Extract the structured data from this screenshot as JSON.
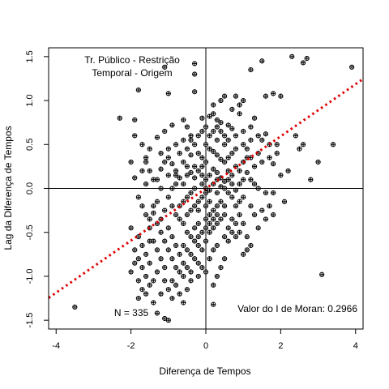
{
  "chart_data": {
    "type": "scatter",
    "xlabel": "Diferença de Tempos",
    "ylabel": "Lag da Diferença de Tempos",
    "xlim": [
      -4.2,
      4.2
    ],
    "ylim": [
      -1.6,
      1.6
    ],
    "x_ticks": [
      -4,
      -2,
      0,
      2,
      4
    ],
    "x_tick_labels": [
      "-4",
      "-2",
      "0",
      "2",
      "4"
    ],
    "y_ticks": [
      -1.5,
      -1.0,
      -0.5,
      0.0,
      0.5,
      1.0,
      1.5
    ],
    "y_tick_labels": [
      "-1.5",
      "-1.0",
      "-0.5",
      "0.0",
      "0.5",
      "1.0",
      "1.5"
    ],
    "grid": false,
    "annotations": {
      "title_line1": "Tr. Público - Restrição",
      "title_line2": "Temporal - Origem",
      "n_label": "N = 335",
      "moran_label": "Valor do I de Moran: 0.2966"
    },
    "regression_line": {
      "slope": 0.2966,
      "intercept": 0.0,
      "color": "#e00000",
      "style": "dotted"
    },
    "reference_lines": {
      "x": 0,
      "y": 0
    },
    "point_color": "#000000",
    "points": [
      [
        -3.5,
        -1.35
      ],
      [
        -1.8,
        1.12
      ],
      [
        -1.9,
        0.78
      ],
      [
        -1.1,
        1.38
      ],
      [
        -0.3,
        1.42
      ],
      [
        -0.3,
        1.3
      ],
      [
        1.2,
        1.35
      ],
      [
        1.5,
        1.45
      ],
      [
        2.3,
        1.5
      ],
      [
        2.7,
        1.48
      ],
      [
        2.6,
        1.43
      ],
      [
        3.9,
        1.38
      ],
      [
        -1.0,
        1.08
      ],
      [
        -0.3,
        1.1
      ],
      [
        0.5,
        1.05
      ],
      [
        0.8,
        1.05
      ],
      [
        1.0,
        1.0
      ],
      [
        1.6,
        1.05
      ],
      [
        1.8,
        1.08
      ],
      [
        2.0,
        1.05
      ],
      [
        0.9,
        0.95
      ],
      [
        0.7,
        0.9
      ],
      [
        0.2,
        0.85
      ],
      [
        0.1,
        0.82
      ],
      [
        -0.1,
        0.8
      ],
      [
        0.3,
        0.78
      ],
      [
        0.4,
        0.75
      ],
      [
        -0.6,
        0.78
      ],
      [
        -0.5,
        0.7
      ],
      [
        -0.4,
        0.6
      ],
      [
        0.6,
        0.72
      ],
      [
        0.7,
        0.68
      ],
      [
        1.4,
        0.6
      ],
      [
        1.5,
        0.55
      ],
      [
        1.6,
        0.62
      ],
      [
        1.2,
        0.55
      ],
      [
        2.4,
        0.6
      ],
      [
        2.6,
        0.5
      ],
      [
        1.7,
        0.5
      ],
      [
        1.9,
        0.4
      ],
      [
        1.8,
        0.28
      ],
      [
        2.0,
        0.15
      ],
      [
        3.0,
        0.3
      ],
      [
        2.5,
        0.45
      ],
      [
        1.1,
        0.45
      ],
      [
        -1.6,
        0.35
      ],
      [
        -1.6,
        0.3
      ],
      [
        -1.5,
        0.2
      ],
      [
        -1.4,
        0.1
      ],
      [
        -1.7,
        0.2
      ],
      [
        -1.6,
        0.05
      ],
      [
        -1.2,
        0.4
      ],
      [
        -1.1,
        0.3
      ],
      [
        -1.2,
        0.22
      ],
      [
        -1.0,
        0.15
      ],
      [
        -1.3,
        0.1
      ],
      [
        -0.8,
        0.2
      ],
      [
        -0.6,
        0.3
      ],
      [
        -0.5,
        0.45
      ],
      [
        -0.4,
        0.55
      ],
      [
        -0.3,
        0.5
      ],
      [
        -0.2,
        0.4
      ],
      [
        -0.1,
        0.35
      ],
      [
        0.0,
        0.5
      ],
      [
        0.1,
        0.45
      ],
      [
        0.2,
        0.42
      ],
      [
        0.3,
        0.38
      ],
      [
        0.4,
        0.33
      ],
      [
        0.5,
        0.3
      ],
      [
        0.6,
        0.35
      ],
      [
        0.7,
        0.4
      ],
      [
        0.8,
        0.25
      ],
      [
        0.9,
        0.2
      ],
      [
        1.0,
        0.3
      ],
      [
        1.1,
        0.18
      ],
      [
        1.2,
        0.1
      ],
      [
        1.3,
        0.05
      ],
      [
        1.4,
        0.0
      ],
      [
        1.6,
        -0.05
      ],
      [
        1.8,
        -0.05
      ],
      [
        -2.0,
        0.3
      ],
      [
        -1.9,
        0.12
      ],
      [
        -1.8,
        -0.1
      ],
      [
        -1.7,
        -0.2
      ],
      [
        -1.6,
        -0.3
      ],
      [
        -1.5,
        -0.35
      ],
      [
        -1.4,
        -0.28
      ],
      [
        -1.3,
        -0.4
      ],
      [
        -1.2,
        -0.5
      ],
      [
        -1.1,
        -0.6
      ],
      [
        -1.0,
        -0.7
      ],
      [
        -0.9,
        -0.8
      ],
      [
        -0.8,
        -0.9
      ],
      [
        -0.7,
        -0.95
      ],
      [
        -0.6,
        -1.0
      ],
      [
        -0.5,
        -0.3
      ],
      [
        -0.4,
        -0.25
      ],
      [
        -0.3,
        -0.2
      ],
      [
        -0.2,
        -0.15
      ],
      [
        -0.1,
        -0.1
      ],
      [
        0.0,
        -0.05
      ],
      [
        0.1,
        -0.02
      ],
      [
        0.2,
        0.05
      ],
      [
        0.3,
        0.1
      ],
      [
        0.4,
        0.12
      ],
      [
        0.5,
        0.08
      ],
      [
        0.6,
        -0.05
      ],
      [
        0.7,
        -0.1
      ],
      [
        0.8,
        -0.2
      ],
      [
        0.9,
        -0.3
      ],
      [
        1.0,
        -0.4
      ],
      [
        -1.0,
        -0.1
      ],
      [
        -0.9,
        -0.2
      ],
      [
        -0.8,
        -0.3
      ],
      [
        -0.7,
        -0.35
      ],
      [
        -0.6,
        -0.4
      ],
      [
        -0.5,
        -0.5
      ],
      [
        -0.4,
        -0.55
      ],
      [
        -0.3,
        -0.6
      ],
      [
        -0.2,
        -0.65
      ],
      [
        -0.1,
        -0.7
      ],
      [
        0.0,
        -0.6
      ],
      [
        0.1,
        -0.5
      ],
      [
        0.2,
        -0.45
      ],
      [
        0.3,
        -0.4
      ],
      [
        0.4,
        -0.35
      ],
      [
        0.5,
        -0.55
      ],
      [
        -1.9,
        -0.7
      ],
      [
        -1.8,
        -0.8
      ],
      [
        -1.7,
        -0.9
      ],
      [
        -1.6,
        -1.0
      ],
      [
        -1.7,
        -1.15
      ],
      [
        -1.6,
        -1.2
      ],
      [
        -1.5,
        -1.1
      ],
      [
        -1.4,
        -1.05
      ],
      [
        -1.5,
        -0.6
      ],
      [
        -1.3,
        -0.7
      ],
      [
        -1.2,
        -0.8
      ],
      [
        -1.1,
        -0.9
      ],
      [
        -0.9,
        -1.05
      ],
      [
        -0.8,
        -1.1
      ],
      [
        -0.7,
        -1.2
      ],
      [
        -1.8,
        -1.25
      ],
      [
        -1.3,
        -1.42
      ],
      [
        -1.1,
        -1.48
      ],
      [
        -1.0,
        -1.5
      ],
      [
        0.2,
        -1.32
      ],
      [
        3.1,
        -0.98
      ],
      [
        1.0,
        -0.75
      ],
      [
        1.1,
        -0.7
      ],
      [
        1.2,
        -0.65
      ],
      [
        0.8,
        -0.55
      ],
      [
        0.5,
        -0.8
      ],
      [
        0.4,
        -0.9
      ],
      [
        0.3,
        -1.0
      ],
      [
        0.2,
        -1.1
      ],
      [
        -0.2,
        0.2
      ],
      [
        -0.1,
        0.25
      ],
      [
        0.0,
        0.3
      ],
      [
        0.1,
        0.15
      ],
      [
        0.2,
        0.22
      ],
      [
        0.3,
        0.18
      ],
      [
        0.0,
        0.1
      ],
      [
        -0.1,
        0.05
      ],
      [
        0.1,
        -0.15
      ],
      [
        0.2,
        -0.25
      ],
      [
        0.3,
        -0.3
      ],
      [
        -0.3,
        0.0
      ],
      [
        -0.4,
        -0.05
      ],
      [
        -0.5,
        -0.1
      ],
      [
        -0.6,
        -0.15
      ],
      [
        -0.7,
        -0.2
      ],
      [
        -0.8,
        0.05
      ],
      [
        -0.9,
        0.0
      ],
      [
        -1.1,
        -0.25
      ],
      [
        -1.2,
        -0.35
      ],
      [
        -1.0,
        -0.45
      ],
      [
        -0.9,
        -0.55
      ],
      [
        -0.8,
        -0.65
      ],
      [
        -0.7,
        -0.75
      ],
      [
        -0.6,
        -0.85
      ],
      [
        -0.5,
        -0.9
      ],
      [
        -0.4,
        -0.95
      ],
      [
        -0.3,
        -0.8
      ],
      [
        -0.2,
        -0.85
      ],
      [
        -0.1,
        -0.9
      ],
      [
        0.0,
        -0.95
      ],
      [
        0.6,
        0.55
      ],
      [
        0.8,
        0.6
      ],
      [
        1.0,
        0.65
      ],
      [
        1.2,
        0.7
      ],
      [
        1.3,
        0.8
      ],
      [
        0.9,
        0.85
      ],
      [
        0.5,
        0.6
      ],
      [
        0.4,
        0.65
      ],
      [
        0.3,
        0.7
      ],
      [
        0.2,
        0.65
      ],
      [
        0.0,
        0.7
      ],
      [
        -0.1,
        0.65
      ],
      [
        -0.2,
        0.6
      ],
      [
        -0.4,
        0.38
      ],
      [
        -0.6,
        0.55
      ],
      [
        -0.8,
        0.5
      ],
      [
        -1.0,
        0.45
      ],
      [
        2.8,
        0.1
      ],
      [
        3.4,
        0.5
      ],
      [
        2.2,
        0.2
      ],
      [
        2.1,
        -0.15
      ],
      [
        1.7,
        -0.2
      ],
      [
        1.5,
        -0.25
      ],
      [
        1.3,
        -0.3
      ],
      [
        1.2,
        -0.2
      ],
      [
        1.0,
        -0.1
      ],
      [
        0.9,
        0.05
      ],
      [
        0.7,
        0.15
      ],
      [
        0.6,
        0.2
      ],
      [
        0.5,
        -0.2
      ],
      [
        0.4,
        -0.15
      ],
      [
        0.3,
        -0.05
      ],
      [
        -2.3,
        0.8
      ],
      [
        -1.9,
        0.6
      ],
      [
        -1.7,
        0.5
      ],
      [
        -1.5,
        0.45
      ],
      [
        -1.3,
        0.58
      ],
      [
        -1.1,
        0.65
      ],
      [
        -0.9,
        0.72
      ],
      [
        -0.7,
        0.4
      ],
      [
        -0.5,
        0.15
      ],
      [
        -0.3,
        0.25
      ],
      [
        -0.6,
        0.05
      ],
      [
        -1.4,
        -0.6
      ],
      [
        -1.6,
        -0.75
      ],
      [
        -1.8,
        -0.55
      ],
      [
        -2.0,
        -0.45
      ],
      [
        -1.5,
        -0.85
      ],
      [
        -1.3,
        -0.95
      ],
      [
        -1.1,
        -1.05
      ],
      [
        -1.0,
        -1.15
      ],
      [
        -0.9,
        -1.25
      ],
      [
        -1.2,
        -1.2
      ],
      [
        -1.4,
        -1.3
      ],
      [
        -0.6,
        -1.3
      ],
      [
        -0.5,
        -1.15
      ],
      [
        -0.4,
        -1.05
      ],
      [
        -0.2,
        -1.0
      ],
      [
        0.1,
        -0.8
      ],
      [
        0.2,
        -0.7
      ],
      [
        0.3,
        -0.65
      ],
      [
        0.6,
        -0.45
      ],
      [
        0.7,
        -0.35
      ],
      [
        0.9,
        -0.5
      ],
      [
        1.1,
        -0.55
      ],
      [
        1.4,
        -0.45
      ],
      [
        1.6,
        -0.35
      ],
      [
        1.8,
        -0.3
      ],
      [
        0.8,
        0.45
      ],
      [
        1.0,
        0.5
      ],
      [
        1.1,
        0.35
      ],
      [
        1.3,
        0.25
      ],
      [
        1.5,
        0.3
      ],
      [
        1.7,
        0.35
      ],
      [
        1.9,
        0.5
      ],
      [
        0.2,
        0.95
      ],
      [
        0.4,
        1.0
      ],
      [
        -0.2,
        -0.4
      ],
      [
        -0.3,
        -0.45
      ],
      [
        -0.1,
        -0.5
      ],
      [
        0.0,
        -0.35
      ],
      [
        0.1,
        -0.3
      ],
      [
        0.0,
        -0.2
      ],
      [
        -0.2,
        -0.25
      ],
      [
        0.4,
        0.02
      ],
      [
        0.5,
        0.0
      ],
      [
        0.6,
        0.1
      ],
      [
        0.7,
        0.05
      ],
      [
        0.8,
        -0.02
      ],
      [
        -0.3,
        0.12
      ],
      [
        -0.4,
        0.18
      ],
      [
        -0.5,
        0.25
      ],
      [
        -0.7,
        0.12
      ],
      [
        -0.8,
        0.15
      ],
      [
        -0.9,
        0.28
      ],
      [
        -1.0,
        0.35
      ],
      [
        -1.2,
        0.0
      ],
      [
        -1.3,
        -0.15
      ],
      [
        -1.4,
        -0.2
      ],
      [
        -1.5,
        -0.45
      ],
      [
        -1.7,
        -0.65
      ],
      [
        -1.9,
        -0.85
      ],
      [
        -2.0,
        -0.95
      ],
      [
        -1.8,
        -1.05
      ],
      [
        -0.6,
        -0.65
      ],
      [
        -0.5,
        -0.7
      ],
      [
        -0.4,
        -0.75
      ],
      [
        -0.2,
        -0.55
      ],
      [
        0.0,
        -0.45
      ],
      [
        0.1,
        -0.4
      ],
      [
        0.2,
        -0.35
      ],
      [
        0.3,
        -0.2
      ],
      [
        0.5,
        -0.3
      ],
      [
        0.6,
        -0.6
      ],
      [
        0.7,
        -0.5
      ],
      [
        0.8,
        -0.4
      ],
      [
        0.9,
        -0.15
      ],
      [
        1.0,
        0.1
      ],
      [
        1.2,
        0.35
      ],
      [
        1.4,
        0.4
      ],
      [
        0.1,
        0.6
      ],
      [
        0.3,
        0.55
      ],
      [
        0.5,
        0.5
      ],
      [
        -0.1,
        0.15
      ],
      [
        0.0,
        0.0
      ]
    ]
  }
}
